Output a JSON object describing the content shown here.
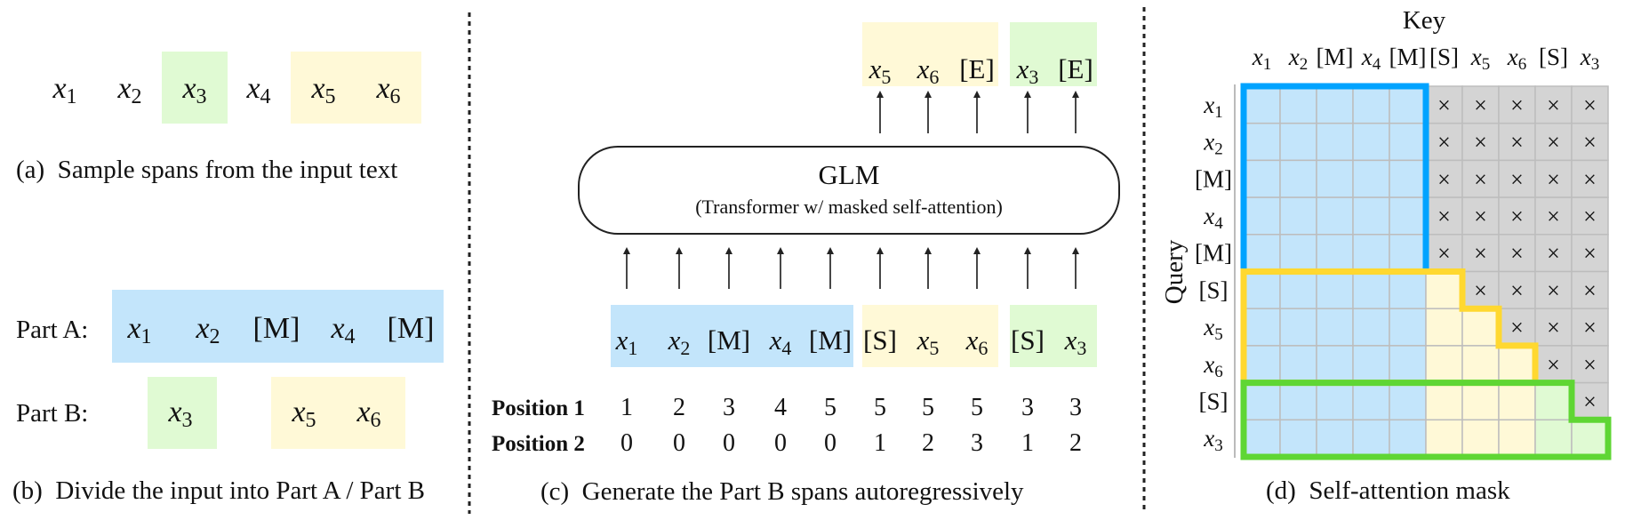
{
  "colors": {
    "blue_fill": "#c3e5fb",
    "yellow_fill": "#fff9d7",
    "green_fill": "#e0fad3",
    "blue_border": "#00a3ff",
    "yellow_border": "#ffd830",
    "green_border": "#5fd634",
    "masked_fill": "#d4d4d4",
    "grid_line": "#bdbdbd",
    "position1": "#1a80c4",
    "position2": "#0b7a0b"
  },
  "panel_a": {
    "tokens": [
      "x1",
      "x2",
      "x3",
      "x4",
      "x5",
      "x6"
    ],
    "spans": [
      {
        "color": "green",
        "tokens": [
          "x3"
        ]
      },
      {
        "color": "yellow",
        "tokens": [
          "x5",
          "x6"
        ]
      }
    ],
    "caption": "(a)  Sample spans from the input text"
  },
  "panel_b": {
    "part_a_label": "Part A:",
    "part_a_tokens": [
      "x1",
      "x2",
      "[M]",
      "x4",
      "[M]"
    ],
    "part_b_label": "Part B:",
    "part_b_spans": [
      {
        "color": "green",
        "tokens": [
          "x3"
        ]
      },
      {
        "color": "yellow",
        "tokens": [
          "x5",
          "x6"
        ]
      }
    ],
    "caption": "(b)  Divide the input into Part A / Part B"
  },
  "panel_c": {
    "model_name": "GLM",
    "model_desc": "(Transformer w/ masked self-attention)",
    "outputs": [
      {
        "color": "yellow",
        "tokens": [
          "x5",
          "x6",
          "[E]"
        ]
      },
      {
        "color": "green",
        "tokens": [
          "x3",
          "[E]"
        ]
      }
    ],
    "inputs": [
      {
        "color": "blue",
        "tokens": [
          "x1",
          "x2",
          "[M]",
          "x4",
          "[M]"
        ]
      },
      {
        "color": "yellow",
        "tokens": [
          "[S]",
          "x5",
          "x6"
        ]
      },
      {
        "color": "green",
        "tokens": [
          "[S]",
          "x3"
        ]
      }
    ],
    "position1_label": "Position 1",
    "position1": [
      1,
      2,
      3,
      4,
      5,
      5,
      5,
      5,
      3,
      3
    ],
    "position2_label": "Position 2",
    "position2": [
      0,
      0,
      0,
      0,
      0,
      1,
      2,
      3,
      1,
      2
    ],
    "caption": "(c)  Generate the Part B spans autoregressively"
  },
  "panel_d": {
    "key_label": "Key",
    "query_label": "Query",
    "labels": [
      "x1",
      "x2",
      "[M]",
      "x4",
      "[M]",
      "[S]",
      "x5",
      "x6",
      "[S]",
      "x3"
    ],
    "column_colors": [
      "blue",
      "blue",
      "blue",
      "blue",
      "blue",
      "yellow",
      "yellow",
      "yellow",
      "green",
      "green"
    ],
    "visible_keys_per_query": [
      5,
      5,
      5,
      5,
      5,
      6,
      7,
      8,
      9,
      10
    ],
    "masked_mark": "×",
    "caption": "(d)  Self-attention mask"
  }
}
